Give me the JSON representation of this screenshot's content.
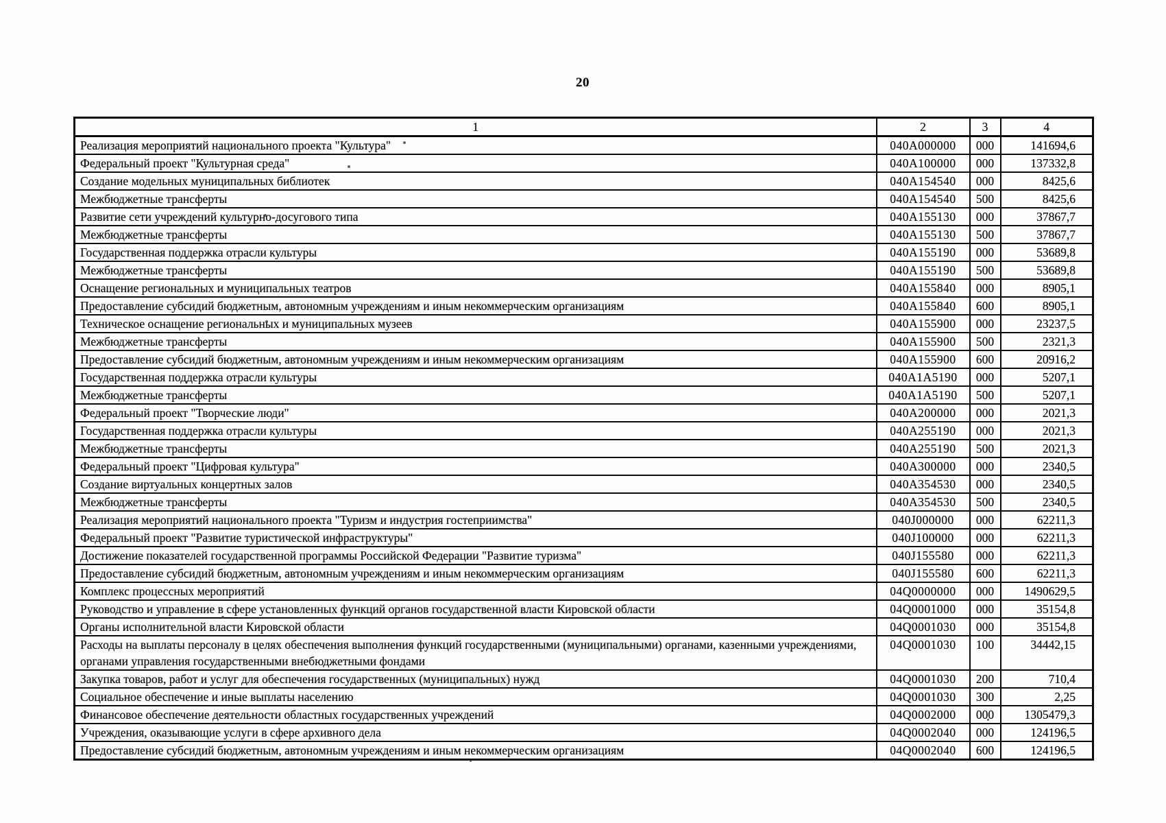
{
  "page_number": "20",
  "table": {
    "headers": {
      "col1": "1",
      "col2": "2",
      "col3": "3",
      "col4": "4"
    },
    "rows": [
      {
        "name": "Реализация мероприятий национального проекта \"Культура\"",
        "code": "040A000000",
        "vr": "000",
        "amount": "141694,6"
      },
      {
        "name": "Федеральный проект \"Культурная среда\"",
        "code": "040A100000",
        "vr": "000",
        "amount": "137332,8"
      },
      {
        "name": "Создание модельных муниципальных библиотек",
        "code": "040A154540",
        "vr": "000",
        "amount": "8425,6"
      },
      {
        "name": "Межбюджетные трансферты",
        "code": "040A154540",
        "vr": "500",
        "amount": "8425,6"
      },
      {
        "name": "Развитие сети учреждений культурно-досугового типа",
        "code": "040A155130",
        "vr": "000",
        "amount": "37867,7"
      },
      {
        "name": "Межбюджетные трансферты",
        "code": "040A155130",
        "vr": "500",
        "amount": "37867,7"
      },
      {
        "name": "Государственная поддержка отрасли культуры",
        "code": "040A155190",
        "vr": "000",
        "amount": "53689,8"
      },
      {
        "name": "Межбюджетные трансферты",
        "code": "040A155190",
        "vr": "500",
        "amount": "53689,8"
      },
      {
        "name": "Оснащение региональных и муниципальных театров",
        "code": "040A155840",
        "vr": "000",
        "amount": "8905,1"
      },
      {
        "name": "Предоставление субсидий бюджетным, автономным учреждениям и иным некоммерческим организациям",
        "code": "040A155840",
        "vr": "600",
        "amount": "8905,1"
      },
      {
        "name": "Техническое оснащение региональных и муниципальных музеев",
        "code": "040A155900",
        "vr": "000",
        "amount": "23237,5"
      },
      {
        "name": "Межбюджетные трансферты",
        "code": "040A155900",
        "vr": "500",
        "amount": "2321,3"
      },
      {
        "name": "Предоставление субсидий бюджетным, автономным учреждениям и иным некоммерческим организациям",
        "code": "040A155900",
        "vr": "600",
        "amount": "20916,2"
      },
      {
        "name": "Государственная поддержка отрасли культуры",
        "code": "040A1A5190",
        "vr": "000",
        "amount": "5207,1"
      },
      {
        "name": "Межбюджетные трансферты",
        "code": "040A1A5190",
        "vr": "500",
        "amount": "5207,1"
      },
      {
        "name": "Федеральный проект \"Творческие люди\"",
        "code": "040A200000",
        "vr": "000",
        "amount": "2021,3"
      },
      {
        "name": "Государственная поддержка отрасли культуры",
        "code": "040A255190",
        "vr": "000",
        "amount": "2021,3"
      },
      {
        "name": "Межбюджетные трансферты",
        "code": "040A255190",
        "vr": "500",
        "amount": "2021,3"
      },
      {
        "name": "Федеральный проект \"Цифровая культура\"",
        "code": "040A300000",
        "vr": "000",
        "amount": "2340,5"
      },
      {
        "name": "Создание виртуальных концертных залов",
        "code": "040A354530",
        "vr": "000",
        "amount": "2340,5"
      },
      {
        "name": "Межбюджетные трансферты",
        "code": "040A354530",
        "vr": "500",
        "amount": "2340,5"
      },
      {
        "name": "Реализация мероприятий национального проекта \"Туризм и индустрия гостеприимства\"",
        "code": "040J000000",
        "vr": "000",
        "amount": "62211,3"
      },
      {
        "name": "Федеральный проект \"Развитие туристической инфраструктуры\"",
        "code": "040J100000",
        "vr": "000",
        "amount": "62211,3"
      },
      {
        "name": "Достижение показателей государственной программы Российской Федерации \"Развитие туризма\"",
        "code": "040J155580",
        "vr": "000",
        "amount": "62211,3"
      },
      {
        "name": "Предоставление субсидий бюджетным, автономным учреждениям и иным некоммерческим организациям",
        "code": "040J155580",
        "vr": "600",
        "amount": "62211,3"
      },
      {
        "name": "Комплекс процессных мероприятий",
        "code": "04Q0000000",
        "vr": "000",
        "amount": "1490629,5"
      },
      {
        "name": "Руководство и управление в сфере установленных функций органов государственной власти Кировской области",
        "code": "04Q0001000",
        "vr": "000",
        "amount": "35154,8"
      },
      {
        "name": "Органы исполнительной власти Кировской области",
        "code": "04Q0001030",
        "vr": "000",
        "amount": "35154,8"
      },
      {
        "name": "Расходы на выплаты персоналу в целях обеспечения выполнения функций государственными (муниципальными) органами, казенными учреждениями, органами управления государственными внебюджетными фондами",
        "code": "04Q0001030",
        "vr": "100",
        "amount": "34442,15"
      },
      {
        "name": "Закупка товаров, работ и услуг для обеспечения государственных (муниципальных) нужд",
        "code": "04Q0001030",
        "vr": "200",
        "amount": "710,4"
      },
      {
        "name": "Социальное обеспечение и иные выплаты населению",
        "code": "04Q0001030",
        "vr": "300",
        "amount": "2,25"
      },
      {
        "name": "Финансовое обеспечение деятельности областных государственных учреждений",
        "code": "04Q0002000",
        "vr": "000",
        "amount": "1305479,3"
      },
      {
        "name": "Учреждения, оказывающие услуги в сфере архивного дела",
        "code": "04Q0002040",
        "vr": "000",
        "amount": "124196,5"
      },
      {
        "name": "Предоставление субсидий бюджетным, автономным учреждениям и иным некоммерческим организациям",
        "code": "04Q0002040",
        "vr": "600",
        "amount": "124196,5"
      }
    ]
  }
}
